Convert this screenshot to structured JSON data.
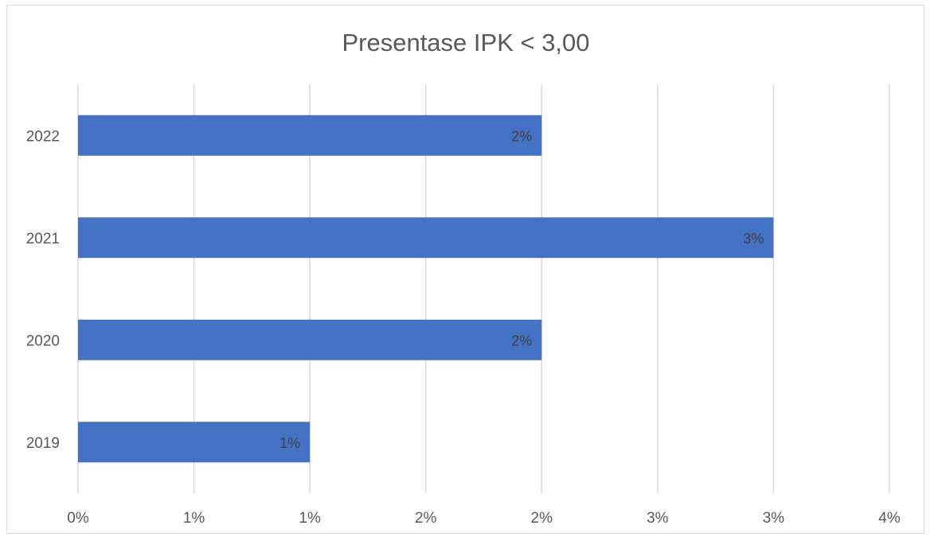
{
  "chart_data": {
    "type": "bar",
    "orientation": "horizontal",
    "title": "Presentase IPK < 3,00",
    "xlabel": "",
    "ylabel": "",
    "categories": [
      "2019",
      "2020",
      "2021",
      "2022"
    ],
    "values": [
      1,
      2,
      3,
      2
    ],
    "data_labels": [
      "1%",
      "2%",
      "3%",
      "2%"
    ],
    "value_unit": "%",
    "xlim": [
      0,
      3.5
    ],
    "x_ticks": [
      0,
      0.5,
      1,
      1.5,
      2,
      2.5,
      3,
      3.5
    ],
    "x_tick_labels": [
      "0%",
      "1%",
      "1%",
      "2%",
      "2%",
      "3%",
      "3%",
      "4%"
    ],
    "grid": "vertical",
    "legend": "none",
    "colors": {
      "bar": "#4472c4",
      "grid": "#d9d9d9",
      "text": "#595959",
      "data_label": "#404040"
    }
  }
}
